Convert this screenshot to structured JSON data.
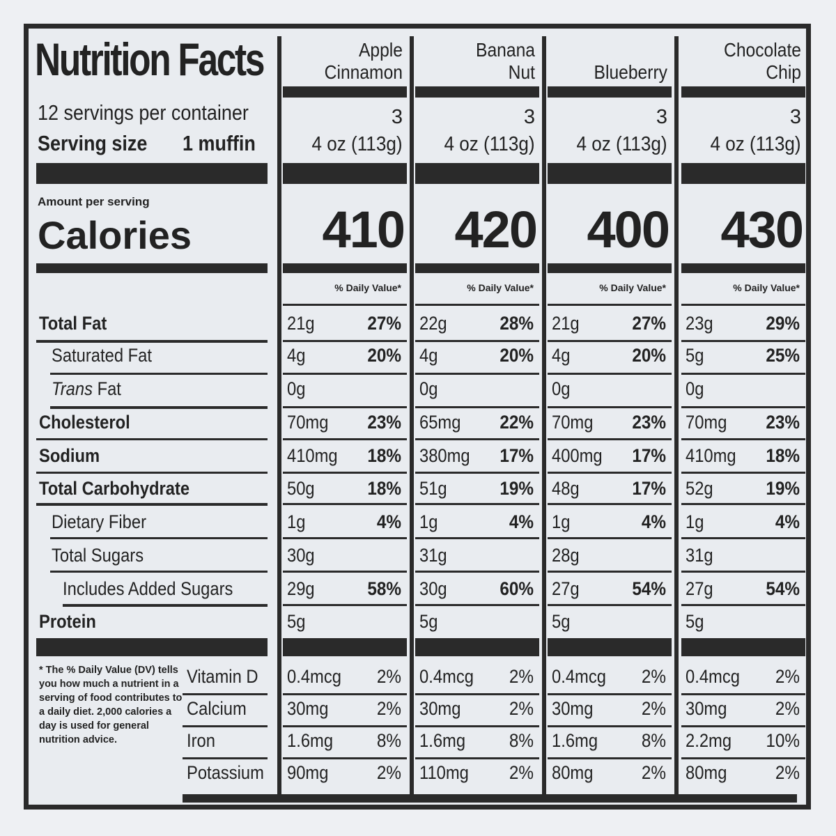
{
  "header": {
    "title": "Nutrition Facts",
    "servings_per_container": "12 servings per container",
    "serving_size_label": "Serving size",
    "serving_size_value": "1 muffin",
    "amount_per_serving": "Amount per serving",
    "calories_label": "Calories",
    "daily_value_header": "% Daily Value*"
  },
  "nutrients": [
    {
      "label": "Total Fat",
      "bold": true
    },
    {
      "label": "Saturated Fat",
      "bold": false
    },
    {
      "label": "Trans",
      "suffix": " Fat",
      "bold": false
    },
    {
      "label": "Cholesterol",
      "bold": true
    },
    {
      "label": "Sodium",
      "bold": true
    },
    {
      "label": "Total Carbohydrate",
      "bold": true
    },
    {
      "label": "Dietary Fiber",
      "bold": false
    },
    {
      "label": "Total Sugars",
      "bold": false
    },
    {
      "label": "Includes Added Sugars",
      "bold": false
    },
    {
      "label": "Protein",
      "bold": true
    }
  ],
  "vitamins": [
    "Vitamin D",
    "Calcium",
    "Iron",
    "Potassium"
  ],
  "footnote": "* The % Daily Value (DV) tells you how much a nutrient in a serving of food contributes to a daily diet. 2,000 calories a day is used for general nutrition advice.",
  "products": [
    {
      "name_line1": "Apple",
      "name_line2": "Cinnamon",
      "servings": "3",
      "serving_size": "4 oz (113g)",
      "calories": "410",
      "nutrients": [
        {
          "amount": "21g",
          "dv": "27%"
        },
        {
          "amount": "4g",
          "dv": "20%"
        },
        {
          "amount": "0g",
          "dv": ""
        },
        {
          "amount": "70mg",
          "dv": "23%"
        },
        {
          "amount": "410mg",
          "dv": "18%"
        },
        {
          "amount": "50g",
          "dv": "18%"
        },
        {
          "amount": "1g",
          "dv": "4%"
        },
        {
          "amount": "30g",
          "dv": ""
        },
        {
          "amount": "29g",
          "dv": "58%"
        },
        {
          "amount": "5g",
          "dv": ""
        }
      ],
      "vitamins": [
        {
          "amount": "0.4mcg",
          "dv": "2%"
        },
        {
          "amount": "30mg",
          "dv": "2%"
        },
        {
          "amount": "1.6mg",
          "dv": "8%"
        },
        {
          "amount": "90mg",
          "dv": "2%"
        }
      ]
    },
    {
      "name_line1": "Banana",
      "name_line2": "Nut",
      "servings": "3",
      "serving_size": "4 oz (113g)",
      "calories": "420",
      "nutrients": [
        {
          "amount": "22g",
          "dv": "28%"
        },
        {
          "amount": "4g",
          "dv": "20%"
        },
        {
          "amount": "0g",
          "dv": ""
        },
        {
          "amount": "65mg",
          "dv": "22%"
        },
        {
          "amount": "380mg",
          "dv": "17%"
        },
        {
          "amount": "51g",
          "dv": "19%"
        },
        {
          "amount": "1g",
          "dv": "4%"
        },
        {
          "amount": "31g",
          "dv": ""
        },
        {
          "amount": "30g",
          "dv": "60%"
        },
        {
          "amount": "5g",
          "dv": ""
        }
      ],
      "vitamins": [
        {
          "amount": "0.4mcg",
          "dv": "2%"
        },
        {
          "amount": "30mg",
          "dv": "2%"
        },
        {
          "amount": "1.6mg",
          "dv": "8%"
        },
        {
          "amount": "110mg",
          "dv": "2%"
        }
      ]
    },
    {
      "name_line1": "",
      "name_line2": "Blueberry",
      "servings": "3",
      "serving_size": "4 oz (113g)",
      "calories": "400",
      "nutrients": [
        {
          "amount": "21g",
          "dv": "27%"
        },
        {
          "amount": "4g",
          "dv": "20%"
        },
        {
          "amount": "0g",
          "dv": ""
        },
        {
          "amount": "70mg",
          "dv": "23%"
        },
        {
          "amount": "400mg",
          "dv": "17%"
        },
        {
          "amount": "48g",
          "dv": "17%"
        },
        {
          "amount": "1g",
          "dv": "4%"
        },
        {
          "amount": "28g",
          "dv": ""
        },
        {
          "amount": "27g",
          "dv": "54%"
        },
        {
          "amount": "5g",
          "dv": ""
        }
      ],
      "vitamins": [
        {
          "amount": "0.4mcg",
          "dv": "2%"
        },
        {
          "amount": "30mg",
          "dv": "2%"
        },
        {
          "amount": "1.6mg",
          "dv": "8%"
        },
        {
          "amount": "80mg",
          "dv": "2%"
        }
      ]
    },
    {
      "name_line1": "Chocolate",
      "name_line2": "Chip",
      "servings": "3",
      "serving_size": "4 oz (113g)",
      "calories": "430",
      "nutrients": [
        {
          "amount": "23g",
          "dv": "29%"
        },
        {
          "amount": "5g",
          "dv": "25%"
        },
        {
          "amount": "0g",
          "dv": ""
        },
        {
          "amount": "70mg",
          "dv": "23%"
        },
        {
          "amount": "410mg",
          "dv": "18%"
        },
        {
          "amount": "52g",
          "dv": "19%"
        },
        {
          "amount": "1g",
          "dv": "4%"
        },
        {
          "amount": "31g",
          "dv": ""
        },
        {
          "amount": "27g",
          "dv": "54%"
        },
        {
          "amount": "5g",
          "dv": ""
        }
      ],
      "vitamins": [
        {
          "amount": "0.4mcg",
          "dv": "2%"
        },
        {
          "amount": "30mg",
          "dv": "2%"
        },
        {
          "amount": "2.2mg",
          "dv": "10%"
        },
        {
          "amount": "80mg",
          "dv": "2%"
        }
      ]
    }
  ]
}
